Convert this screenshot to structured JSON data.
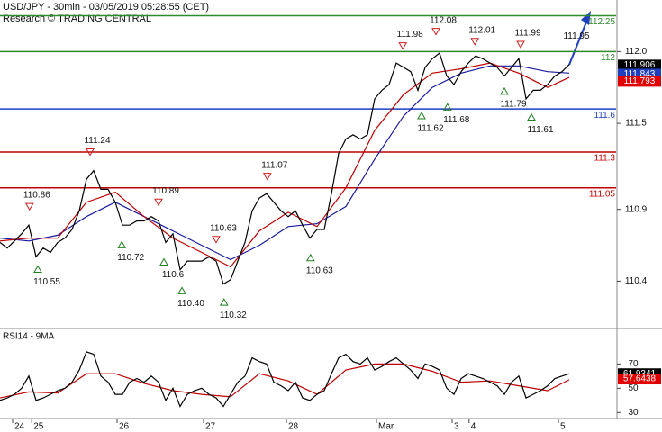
{
  "chart_data": {
    "type": "candlestick-line",
    "title": "USD/JPY - 30min - 03/05/2019 05:28:55 (CET)",
    "subtitle": "Research © TRADING CENTRAL",
    "xlim": [
      0,
      85.5
    ],
    "xticks": [
      {
        "value": 1.75,
        "label": "24"
      },
      {
        "value": 4.4,
        "label": "25"
      },
      {
        "value": 16.25,
        "label": "26"
      },
      {
        "value": 28.25,
        "label": "27"
      },
      {
        "value": 39.75,
        "label": "28"
      },
      {
        "value": 52.25,
        "label": "Mar"
      },
      {
        "value": 62.75,
        "label": "3"
      },
      {
        "value": 65.1,
        "label": "4"
      },
      {
        "value": 77.5,
        "label": "5"
      }
    ],
    "ylim": [
      110.07,
      112.36
    ],
    "yticks": [
      {
        "value": 112,
        "label": "112.0"
      },
      111.5,
      110.9,
      110.4
    ],
    "series": [
      {
        "name": "USD/JPY",
        "color": "#000000",
        "values": [
          110.67,
          110.63,
          110.68,
          110.73,
          110.79,
          110.57,
          110.63,
          110.6,
          110.67,
          110.7,
          110.76,
          110.89,
          111.11,
          111.17,
          111.04,
          111.04,
          110.95,
          110.79,
          110.79,
          110.82,
          110.82,
          110.85,
          110.82,
          110.67,
          110.73,
          110.48,
          110.54,
          110.54,
          110.54,
          110.57,
          110.54,
          110.38,
          110.41,
          110.54,
          110.67,
          110.89,
          110.98,
          111.01,
          110.95,
          110.89,
          110.85,
          110.89,
          110.79,
          110.7,
          110.76,
          110.76,
          111.01,
          111.29,
          111.39,
          111.42,
          111.39,
          111.42,
          111.67,
          111.73,
          111.77,
          111.92,
          111.89,
          111.86,
          111.73,
          111.89,
          111.95,
          111.99,
          111.83,
          111.77,
          111.86,
          111.92,
          111.97,
          111.95,
          111.92,
          111.89,
          111.83,
          111.89,
          111.95,
          111.67,
          111.73,
          111.73,
          111.77,
          111.83,
          111.86,
          111.91
        ]
      },
      {
        "name": "MA fast",
        "color": "#c00000",
        "x": [
          0,
          4,
          8,
          12,
          16,
          20,
          24,
          28,
          32,
          36,
          40,
          44,
          48,
          52,
          56,
          60,
          64,
          68,
          72,
          76,
          79
        ],
        "values": [
          110.68,
          110.7,
          110.7,
          110.95,
          111.02,
          110.85,
          110.7,
          110.6,
          110.5,
          110.75,
          110.88,
          110.78,
          111.05,
          111.45,
          111.7,
          111.85,
          111.88,
          111.92,
          111.85,
          111.75,
          111.82
        ]
      },
      {
        "name": "MA slow",
        "color": "#1a1aa0",
        "x": [
          0,
          4,
          8,
          12,
          16,
          20,
          24,
          28,
          32,
          36,
          40,
          44,
          48,
          52,
          56,
          60,
          64,
          68,
          72,
          76,
          79
        ],
        "values": [
          110.7,
          110.68,
          110.72,
          110.85,
          110.95,
          110.85,
          110.75,
          110.65,
          110.55,
          110.65,
          110.78,
          110.8,
          110.92,
          111.25,
          111.55,
          111.75,
          111.85,
          111.9,
          111.9,
          111.86,
          111.85
        ]
      }
    ],
    "levels": {
      "values": [
        112.25,
        112,
        111.6,
        111.3,
        111.05
      ],
      "colors": [
        "#2e8b2e",
        "#2e8b2e",
        "#1f3fbf",
        "#c00000",
        "#c00000"
      ]
    },
    "price_labels": {
      "values": [
        111.906,
        111.843,
        111.793
      ],
      "colors": [
        "#000000",
        "#1f3fbf",
        "#e00000"
      ]
    },
    "annotations": [
      {
        "x": 4.1,
        "value": 110.86,
        "label": "110.86",
        "kind": "high"
      },
      {
        "x": 5.25,
        "value": 110.55,
        "label": "110.55",
        "kind": "low"
      },
      {
        "x": 12.5,
        "value": 111.24,
        "label": "111.24",
        "kind": "high"
      },
      {
        "x": 16.9,
        "value": 110.72,
        "label": "110.72",
        "kind": "low"
      },
      {
        "x": 22,
        "value": 110.89,
        "label": "110.89",
        "kind": "high"
      },
      {
        "x": 22.75,
        "value": 110.6,
        "label": "110.6",
        "kind": "low"
      },
      {
        "x": 25.25,
        "value": 110.4,
        "label": "110.40",
        "kind": "low"
      },
      {
        "x": 30,
        "value": 110.63,
        "label": "110.63",
        "kind": "high"
      },
      {
        "x": 31.1,
        "value": 110.32,
        "label": "110.32",
        "kind": "low"
      },
      {
        "x": 37.1,
        "value": 111.07,
        "label": "111.07",
        "kind": "high"
      },
      {
        "x": 43.1,
        "value": 110.63,
        "label": "110.63",
        "kind": "low"
      },
      {
        "x": 55.9,
        "value": 111.98,
        "label": "111.98",
        "kind": "high"
      },
      {
        "x": 60.5,
        "value": 112.08,
        "label": "112.08",
        "kind": "high"
      },
      {
        "x": 65.9,
        "value": 112.01,
        "label": "112.01",
        "kind": "high"
      },
      {
        "x": 72.25,
        "value": 111.99,
        "label": "111.99",
        "kind": "high"
      },
      {
        "x": 58.5,
        "value": 111.62,
        "label": "111.62",
        "kind": "low"
      },
      {
        "x": 62.1,
        "value": 111.68,
        "label": "111.68",
        "kind": "low"
      },
      {
        "x": 70,
        "value": 111.79,
        "label": "111.79",
        "kind": "low"
      },
      {
        "x": 73.75,
        "value": 111.61,
        "label": "111.61",
        "kind": "low"
      },
      {
        "x": 80,
        "value": 111.95,
        "label": "111.95",
        "kind": "target"
      }
    ],
    "rsi": {
      "title": "RSI14 - 9MA",
      "ylim": [
        25,
        97
      ],
      "yticks": [
        30,
        50,
        70
      ],
      "series": [
        {
          "name": "RSI14",
          "color": "#000000",
          "values": [
            40,
            42,
            45,
            50,
            60,
            40,
            42,
            45,
            48,
            50,
            55,
            65,
            80,
            78,
            60,
            55,
            45,
            45,
            55,
            58,
            55,
            60,
            55,
            40,
            50,
            35,
            45,
            48,
            50,
            45,
            42,
            35,
            45,
            55,
            60,
            75,
            72,
            70,
            55,
            52,
            48,
            55,
            42,
            40,
            45,
            48,
            62,
            75,
            78,
            72,
            70,
            75,
            65,
            68,
            72,
            75,
            70,
            65,
            58,
            70,
            68,
            65,
            50,
            45,
            58,
            62,
            60,
            58,
            55,
            52,
            45,
            55,
            60,
            42,
            45,
            48,
            52,
            58,
            60,
            62
          ]
        },
        {
          "name": "9MA",
          "color": "#c00000",
          "x": [
            0,
            4,
            8,
            12,
            16,
            20,
            24,
            28,
            32,
            36,
            40,
            44,
            48,
            52,
            56,
            60,
            64,
            68,
            72,
            76,
            79
          ],
          "values": [
            42,
            47,
            46,
            62,
            62,
            54,
            48,
            45,
            43,
            62,
            56,
            45,
            65,
            70,
            70,
            64,
            55,
            56,
            52,
            48,
            57
          ]
        }
      ],
      "value_labels": {
        "values": [
          61.9341,
          57.6438
        ],
        "colors": [
          "#000000",
          "#e00000"
        ]
      }
    }
  }
}
